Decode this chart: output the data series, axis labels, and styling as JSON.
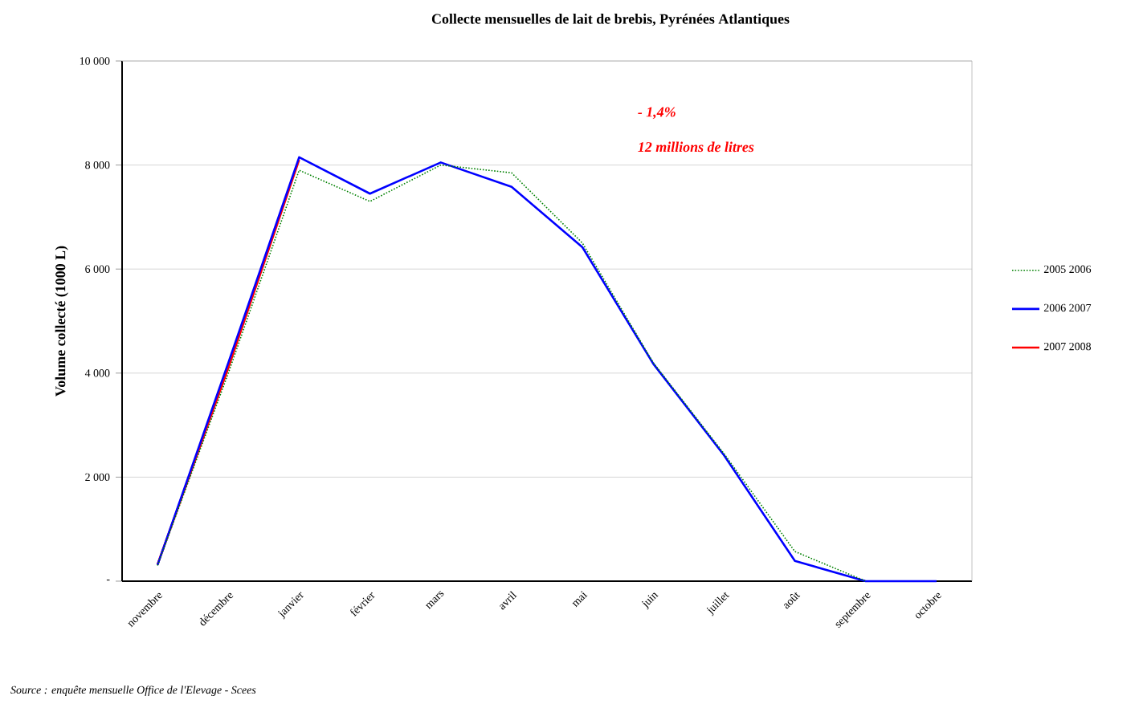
{
  "chart_data": {
    "type": "line",
    "title": "Collecte mensuelles de lait de brebis, Pyrénées Atlantiques",
    "ylabel": "Volume collecté (1000 L)",
    "categories": [
      "novembre",
      "décembre",
      "janvier",
      "février",
      "mars",
      "avril",
      "mai",
      "juin",
      "juillet",
      "août",
      "septembre",
      "octobre"
    ],
    "series": [
      {
        "name": "2005 2006",
        "color": "#008000",
        "line_style": "dotted",
        "values": [
          300,
          4000,
          7900,
          7300,
          8000,
          7850,
          6500,
          4200,
          2450,
          570,
          0,
          null
        ]
      },
      {
        "name": "2006 2007",
        "color": "#0000ff",
        "values": [
          310,
          4200,
          8150,
          7450,
          8050,
          7580,
          6420,
          4180,
          2420,
          390,
          0,
          0
        ]
      },
      {
        "name": "2007 2008",
        "color": "#ff0000",
        "values": [
          320,
          4100,
          8100,
          null,
          null,
          null,
          null,
          null,
          null,
          null,
          null,
          null
        ]
      }
    ],
    "ylim": [
      0,
      10000
    ],
    "yticks": [
      {
        "value": 0,
        "label": "-"
      },
      {
        "value": 2000,
        "label": "2 000"
      },
      {
        "value": 4000,
        "label": "4 000"
      },
      {
        "value": 6000,
        "label": "6 000"
      },
      {
        "value": 8000,
        "label": "8 000"
      },
      {
        "value": 10000,
        "label": "10 000"
      }
    ],
    "grid": "y",
    "legend": "right",
    "marker": "none",
    "annotations": [
      "- 1,4%",
      "12 millions de litres",
      "Source : enquête mensuelle Office de l'Elevage - Scees"
    ]
  }
}
